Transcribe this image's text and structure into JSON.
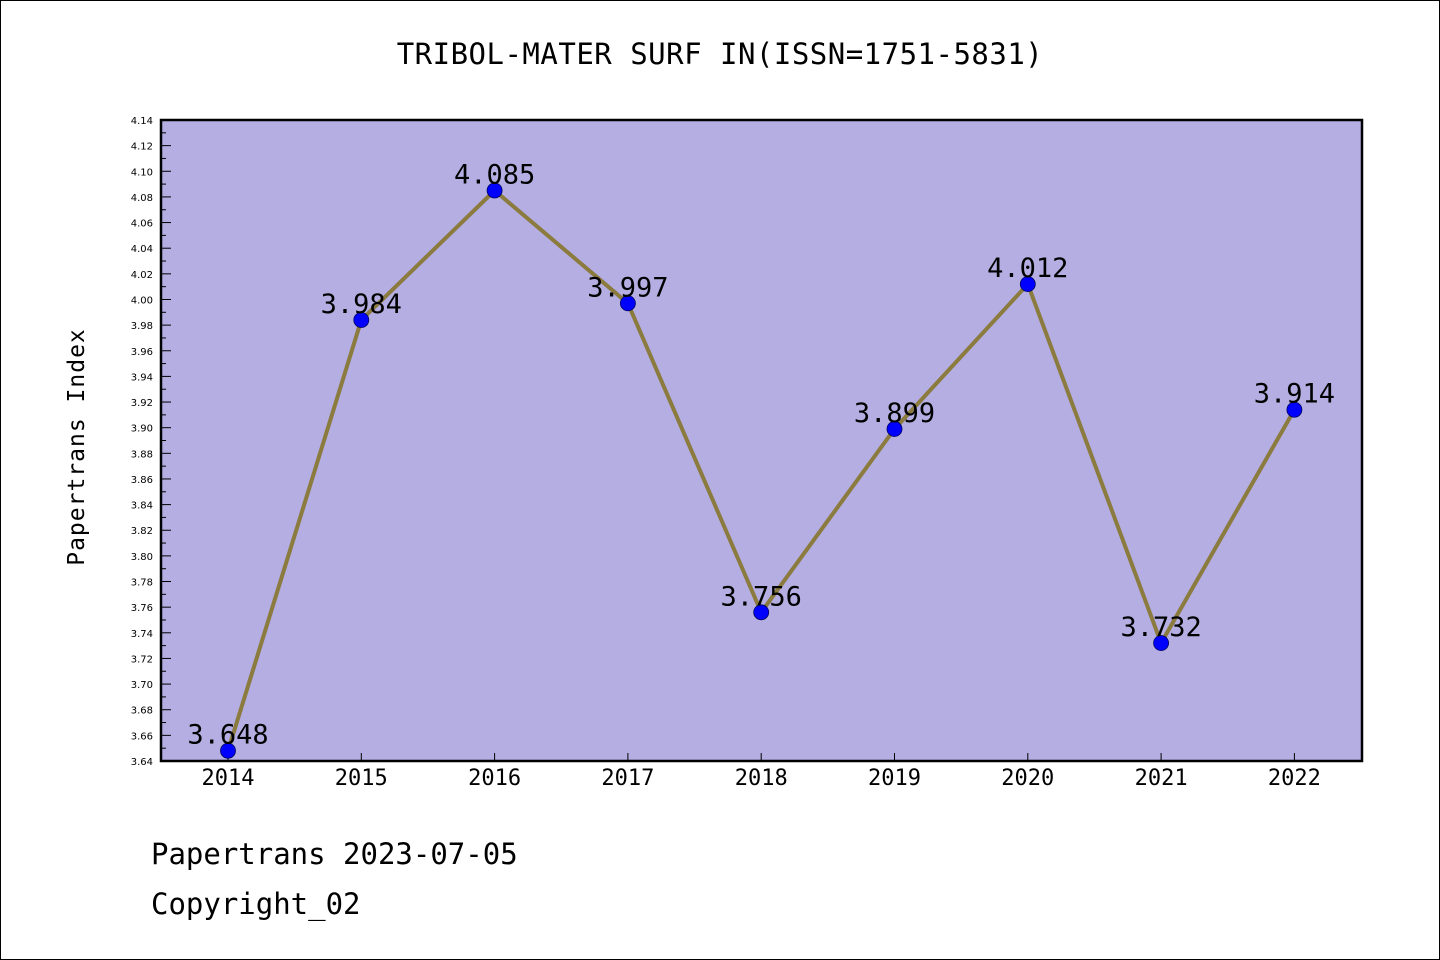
{
  "footer": {
    "line1": "Papertrans 2023-07-05",
    "line2": "Copyright_02"
  },
  "colors": {
    "plot_background": "#b4aee2",
    "line": "#8b7b3e",
    "marker": "#0000ff"
  },
  "chart_data": {
    "type": "line",
    "title": "TRIBOL-MATER SURF IN(ISSN=1751-5831)",
    "xlabel": "",
    "ylabel": "Papertrans Index",
    "categories": [
      "2014",
      "2015",
      "2016",
      "2017",
      "2018",
      "2019",
      "2020",
      "2021",
      "2022"
    ],
    "series": [
      {
        "values": [
          3.648,
          3.984,
          4.085,
          3.997,
          3.756,
          3.899,
          4.012,
          3.732,
          3.914
        ],
        "labels": [
          "3.648",
          "3.984",
          "4.085",
          "3.997",
          "3.756",
          "3.899",
          "4.012",
          "3.732",
          "3.914"
        ]
      }
    ],
    "ylim": [
      3.64,
      4.14
    ],
    "yticks": [
      "3.64",
      "3.66",
      "3.68",
      "3.70",
      "3.72",
      "3.74",
      "3.76",
      "3.78",
      "3.80",
      "3.82",
      "3.84",
      "3.86",
      "3.88",
      "3.90",
      "3.92",
      "3.94",
      "3.96",
      "3.98",
      "4.00",
      "4.02",
      "4.04",
      "4.06",
      "4.08",
      "4.10",
      "4.12",
      "4.14"
    ],
    "grid": false,
    "legend": "none"
  }
}
